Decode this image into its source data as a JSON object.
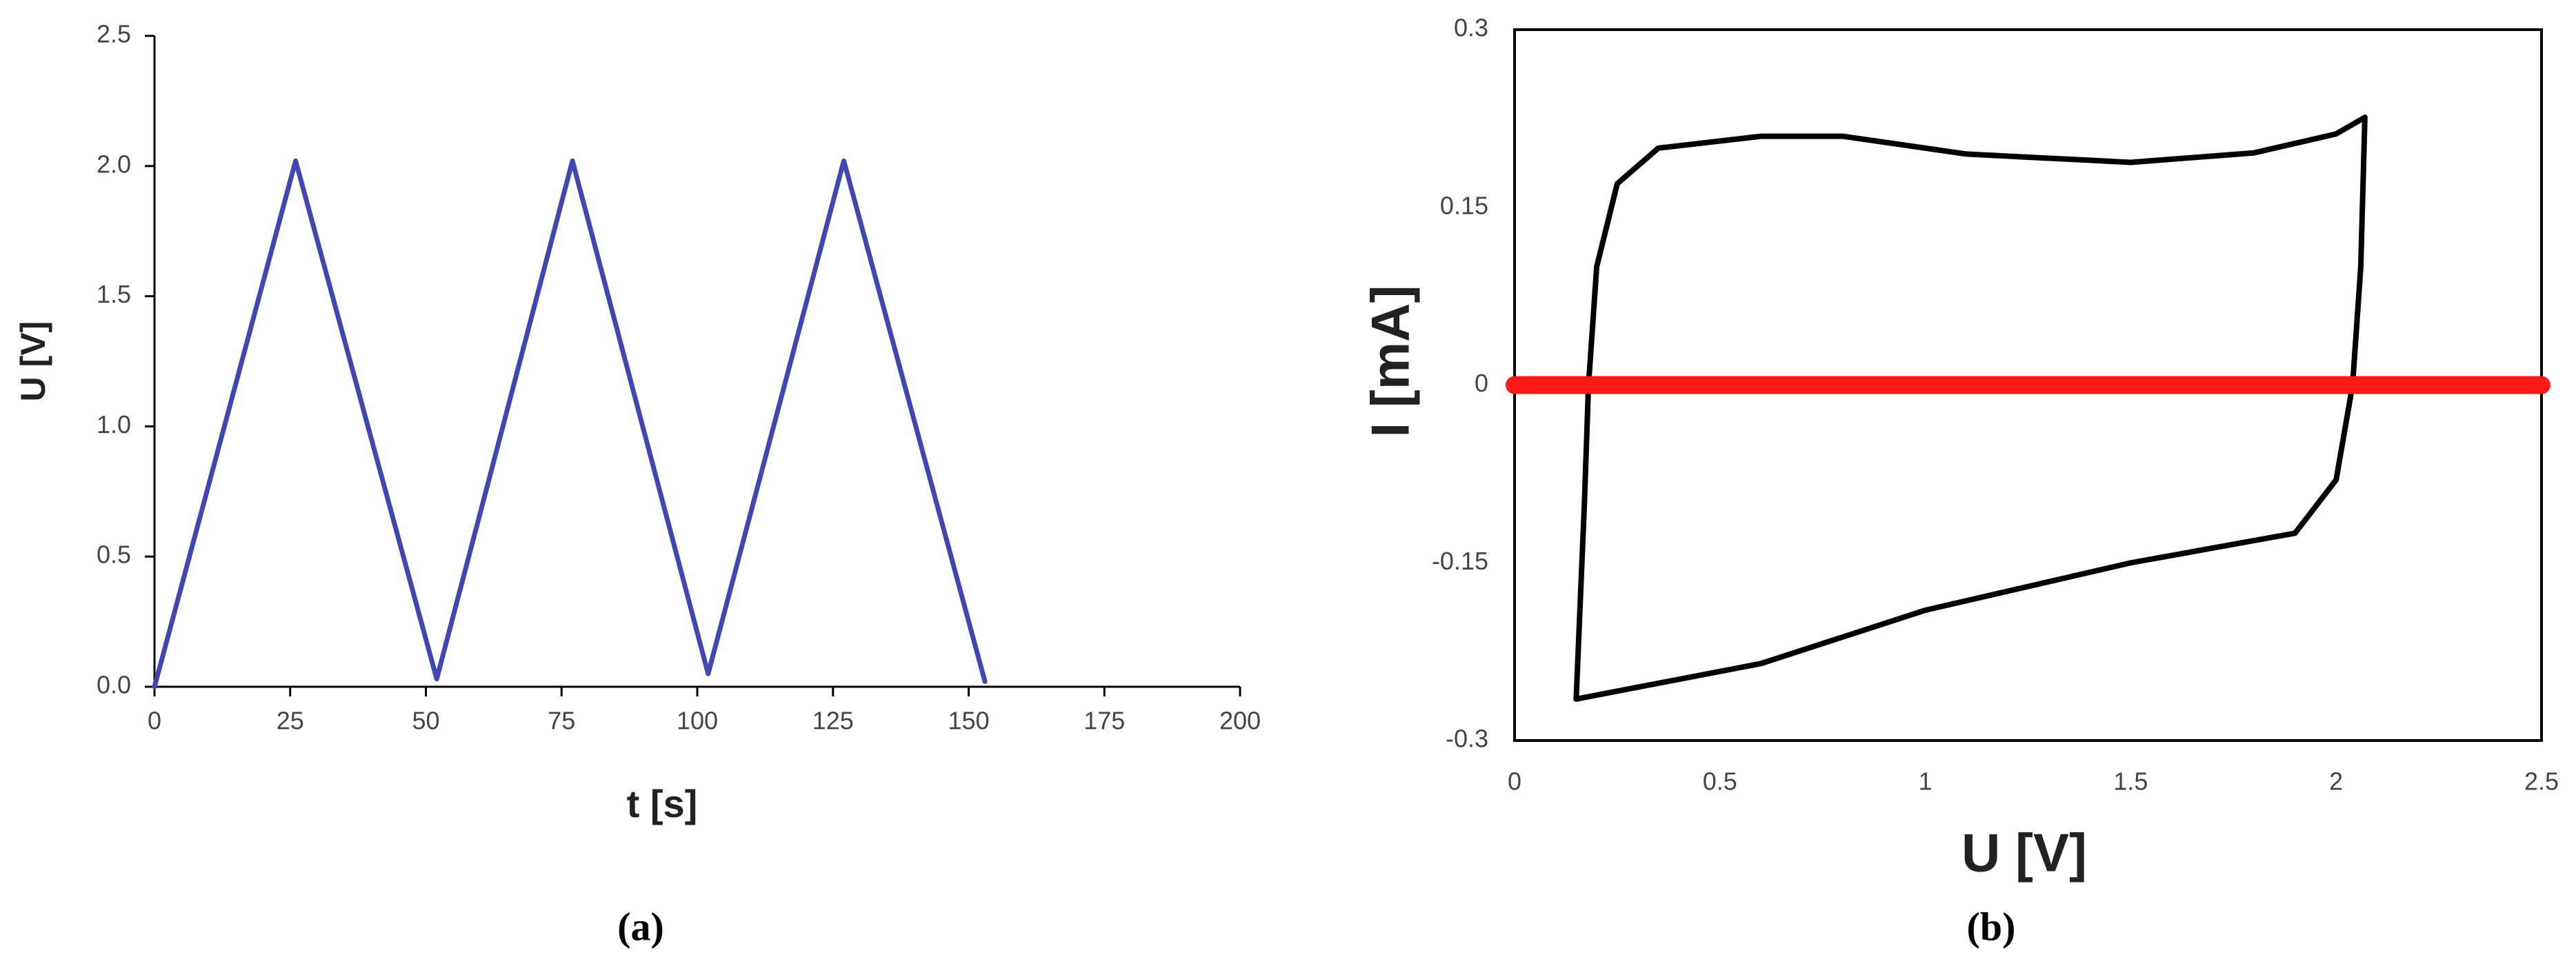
{
  "chart_data": [
    {
      "type": "line",
      "xlabel": "t [s]",
      "ylabel": "U [V]",
      "caption": "(a)",
      "x": [
        0,
        26,
        52,
        77,
        102,
        127,
        153
      ],
      "values": [
        0,
        2.02,
        0.03,
        2.02,
        0.05,
        2.02,
        0.02
      ],
      "color": "#3f48b0",
      "xlim": [
        0,
        200
      ],
      "xticks": [
        0,
        25,
        50,
        75,
        100,
        125,
        150,
        175,
        200
      ],
      "ylim": [
        0,
        2.5
      ],
      "yticks": [
        {
          "value": 0,
          "label": "0.0"
        },
        0.5,
        {
          "value": 1,
          "label": "1.0"
        },
        1.5,
        {
          "value": 2,
          "label": "2.0"
        },
        2.5
      ],
      "frame": false
    },
    {
      "type": "line",
      "xlabel": "U [V]",
      "ylabel": "I [mA]",
      "caption": "(b)",
      "series": [
        {
          "color": "#000000",
          "x": [
            0.15,
            0.17,
            0.18,
            0.2,
            0.25,
            0.35,
            0.6,
            0.8,
            1.1,
            1.5,
            1.8,
            2.0,
            2.07,
            2.06,
            2.04,
            2.0,
            1.9,
            1.5,
            1.0,
            0.6,
            0.15
          ],
          "values": [
            -0.265,
            -0.1,
            0,
            0.1,
            0.17,
            0.2,
            0.21,
            0.21,
            0.195,
            0.188,
            0.196,
            0.212,
            0.226,
            0.1,
            0,
            -0.08,
            -0.125,
            -0.15,
            -0.19,
            -0.235,
            -0.265
          ]
        },
        {
          "color": "#ff1a1a",
          "x": [
            0,
            2.5
          ],
          "values": [
            0,
            0
          ]
        }
      ],
      "xlim": [
        0,
        2.5
      ],
      "xticks": [
        0,
        0.5,
        1,
        1.5,
        2,
        2.5
      ],
      "ylim": [
        -0.3,
        0.3
      ],
      "yticks": [
        -0.3,
        -0.15,
        0,
        0.15,
        0.3
      ],
      "frame": true
    }
  ]
}
